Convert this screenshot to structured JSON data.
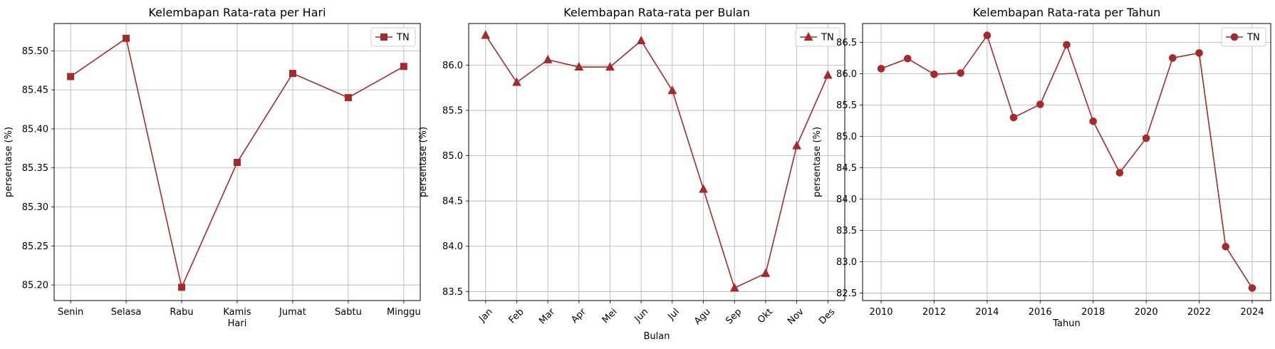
{
  "chart_data": [
    {
      "type": "line",
      "title": "Kelembapan Rata-rata per Hari",
      "xlabel": "Hari",
      "ylabel": "persentase (%)",
      "categories": [
        "Senin",
        "Selasa",
        "Rabu",
        "Kamis",
        "Jumat",
        "Sabtu",
        "Minggu"
      ],
      "series": [
        {
          "name": "TN",
          "marker": "square",
          "color": "#a52a2a",
          "values": [
            85.467,
            85.516,
            85.197,
            85.357,
            85.471,
            85.44,
            85.48
          ]
        }
      ],
      "ylim": [
        85.18,
        85.535
      ],
      "yticks": [
        "85.20",
        "85.25",
        "85.30",
        "85.35",
        "85.40",
        "85.45",
        "85.50"
      ],
      "grid": true,
      "legend": "top-right",
      "xtick_rotation": 0
    },
    {
      "type": "line",
      "title": "Kelembapan Rata-rata per Bulan",
      "xlabel": "Bulan",
      "ylabel": "persentase (%)",
      "categories": [
        "Jan",
        "Feb",
        "Mar",
        "Apr",
        "Mei",
        "Jun",
        "Jul",
        "Agu",
        "Sep",
        "Okt",
        "Nov",
        "Des"
      ],
      "series": [
        {
          "name": "TN",
          "marker": "triangle",
          "color": "#a52a2a",
          "values": [
            86.33,
            85.81,
            86.06,
            85.98,
            85.98,
            86.27,
            85.72,
            84.63,
            83.54,
            83.7,
            85.11,
            85.89
          ]
        }
      ],
      "ylim": [
        83.4,
        86.46
      ],
      "yticks": [
        "83.5",
        "84.0",
        "84.5",
        "85.0",
        "85.5",
        "86.0"
      ],
      "grid": true,
      "legend": "top-right",
      "xtick_rotation": -45
    },
    {
      "type": "line",
      "title": "Kelembapan Rata-rata per Tahun",
      "xlabel": "Tahun",
      "ylabel": "persentase (%)",
      "x": [
        2010,
        2011,
        2012,
        2013,
        2014,
        2015,
        2016,
        2017,
        2018,
        2019,
        2020,
        2021,
        2022,
        2023,
        2024
      ],
      "series": [
        {
          "name": "TN",
          "marker": "circle",
          "color": "#a52a2a",
          "values": [
            86.08,
            86.24,
            85.99,
            86.01,
            86.61,
            85.3,
            85.51,
            86.46,
            85.24,
            84.42,
            84.97,
            86.25,
            86.33,
            83.24,
            82.58
          ]
        }
      ],
      "xlim": [
        2009.3,
        2024.7
      ],
      "xticks": [
        "2010",
        "2012",
        "2014",
        "2016",
        "2018",
        "2020",
        "2022",
        "2024"
      ],
      "ylim": [
        82.38,
        86.8
      ],
      "yticks": [
        "82.5",
        "83.0",
        "83.5",
        "84.0",
        "84.5",
        "85.0",
        "85.5",
        "86.0",
        "86.5"
      ],
      "grid": true,
      "legend": "top-right",
      "xtick_rotation": 0
    }
  ]
}
